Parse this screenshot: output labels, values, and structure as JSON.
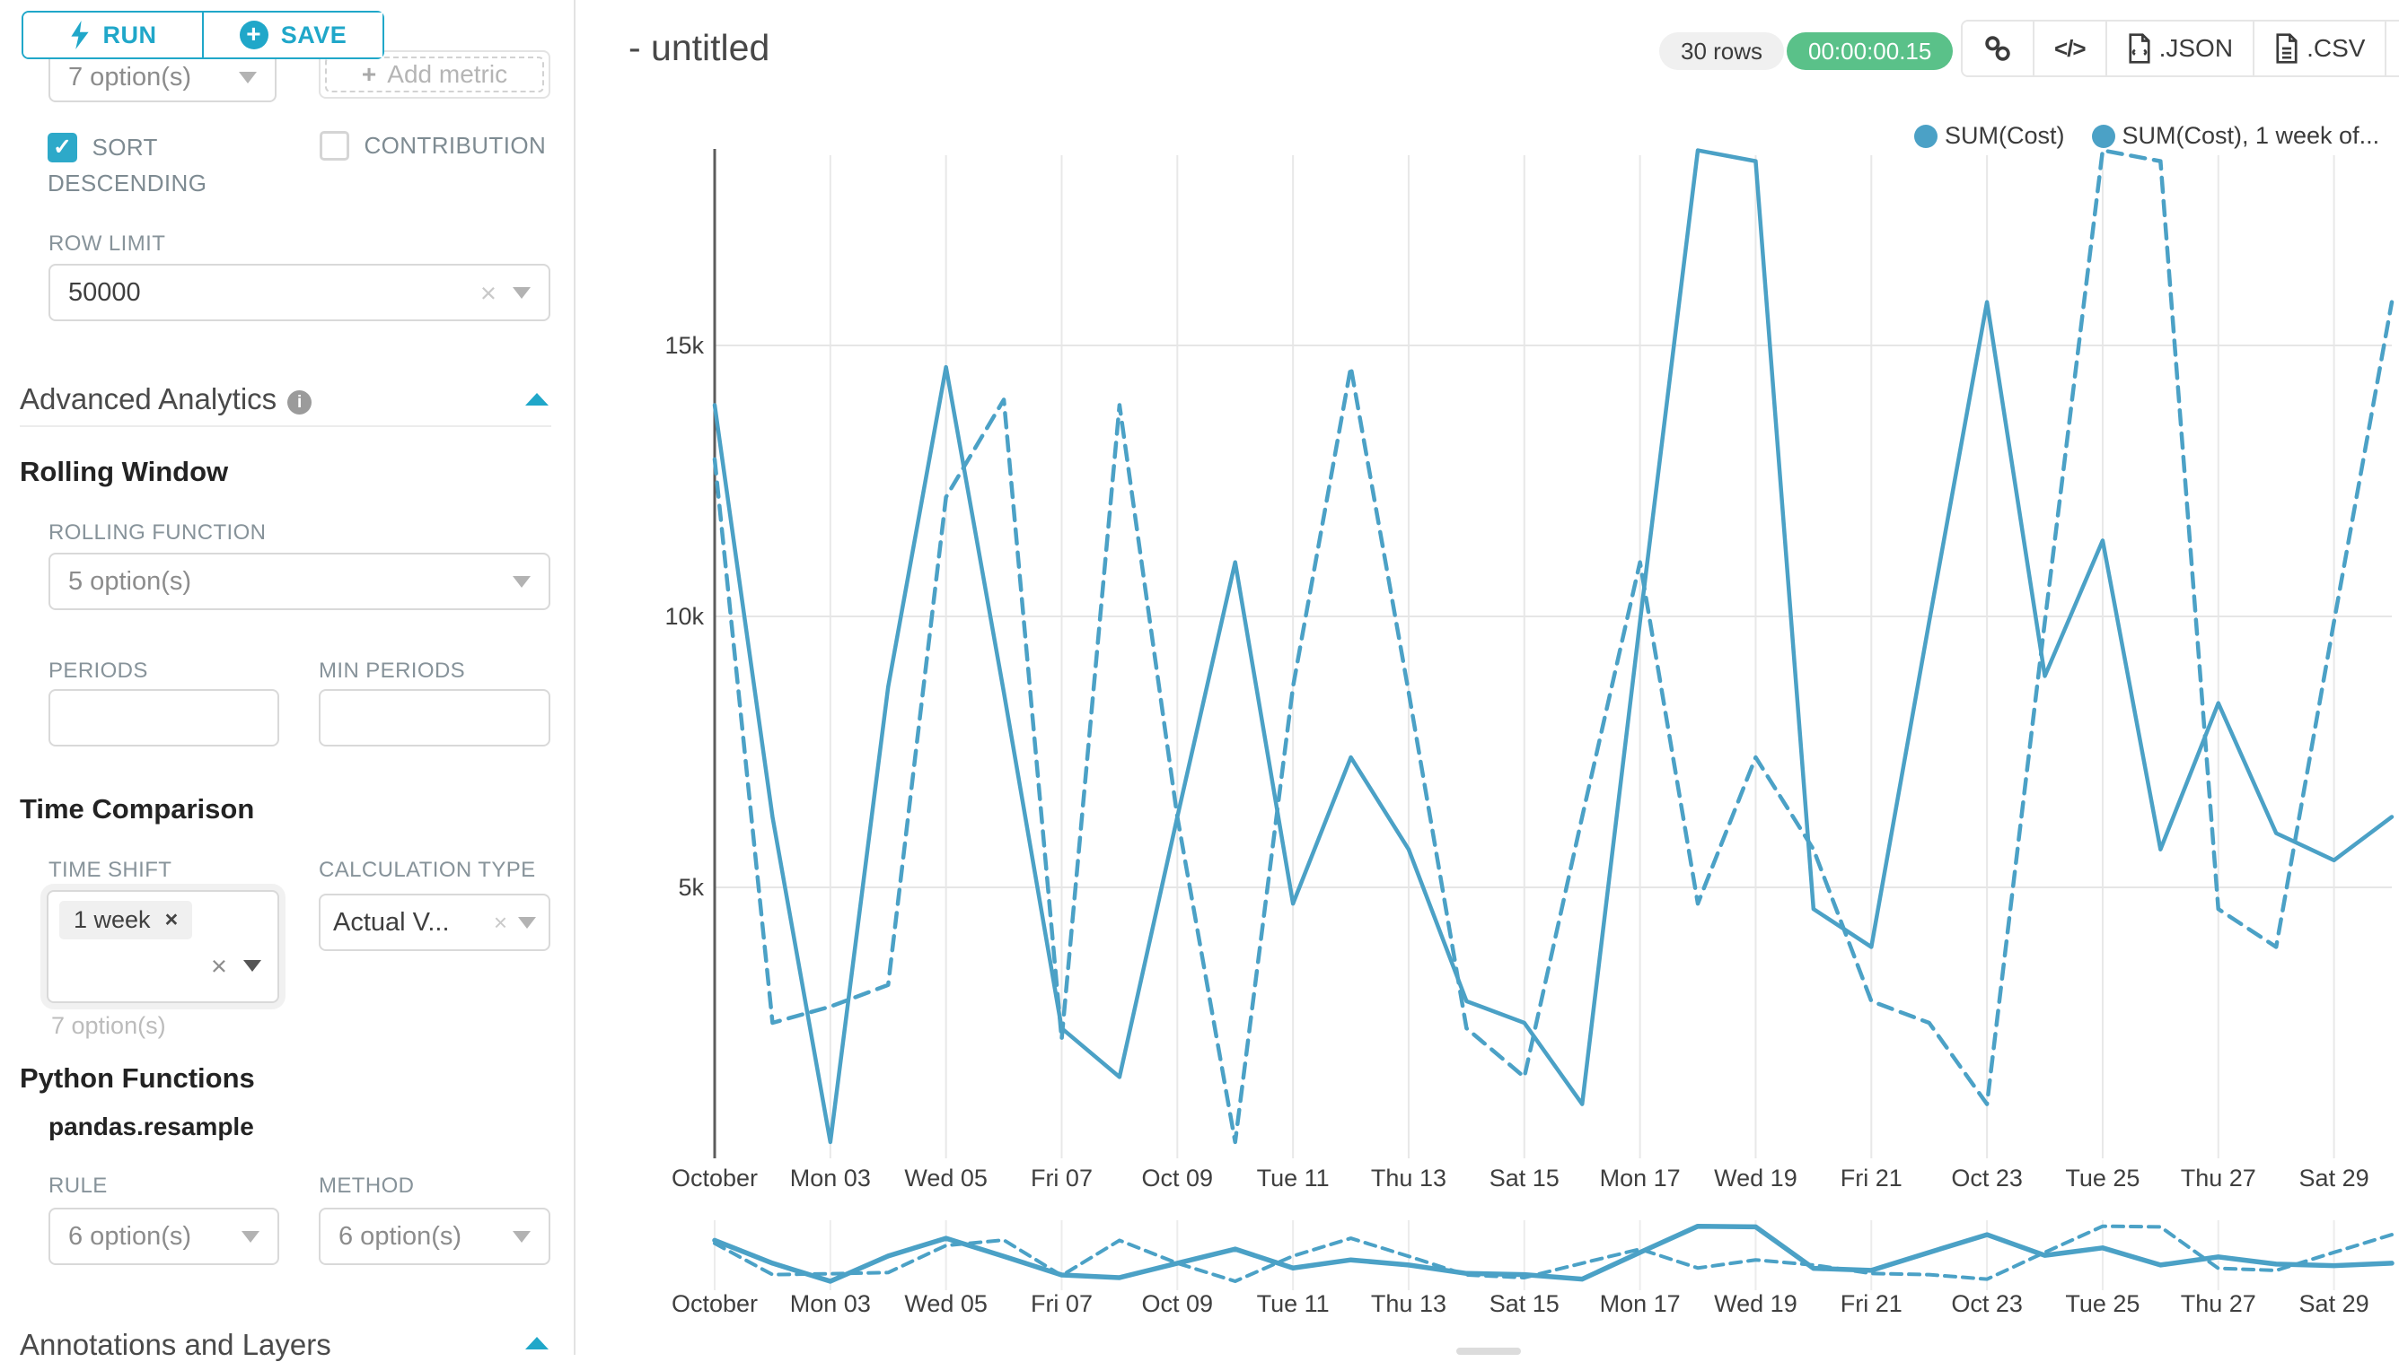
{
  "icons": {
    "clear": "×",
    "check": "✓",
    "plus": "+",
    "info": "i",
    "code": "</>",
    "menu": "≡"
  },
  "sidebar": {
    "run": "RUN",
    "save": "SAVE",
    "series_dropdown": "7 option(s)",
    "add_metric": "Add metric",
    "sort_descending": "SORT DESCENDING",
    "contribution": "CONTRIBUTION",
    "row_limit_label": "ROW LIMIT",
    "row_limit_value": "50000",
    "advanced_analytics": "Advanced Analytics",
    "rolling_window": {
      "title": "Rolling Window",
      "rolling_function_label": "ROLLING FUNCTION",
      "rolling_function_value": "5 option(s)",
      "periods_label": "PERIODS",
      "min_periods_label": "MIN PERIODS"
    },
    "time_comparison": {
      "title": "Time Comparison",
      "time_shift_label": "TIME SHIFT",
      "time_shift_tag": "1 week",
      "time_shift_helper": "7 option(s)",
      "calculation_type_label": "CALCULATION TYPE",
      "calculation_type_value": "Actual V..."
    },
    "python_functions": {
      "title": "Python Functions",
      "subtitle": "pandas.resample",
      "rule_label": "RULE",
      "rule_value": "6 option(s)",
      "method_label": "METHOD",
      "method_value": "6 option(s)"
    },
    "annotations_title": "Annotations and Layers"
  },
  "header": {
    "title": "- untitled",
    "rows_badge": "30 rows",
    "timer_badge": "00:00:00.15",
    "json_label": ".JSON",
    "csv_label": ".CSV"
  },
  "colors": {
    "accent": "#20A7C9",
    "line": "#4BA1C6",
    "timer_green": "#5AC189",
    "grid": "#e8e8e8",
    "axis": "#5c5c5c"
  },
  "chart_data": {
    "type": "line",
    "title": "",
    "xlabel": "",
    "ylabel": "",
    "grid": true,
    "legend_position": "top-right",
    "x": [
      "Oct 01",
      "Oct 02",
      "Oct 03",
      "Oct 04",
      "Oct 05",
      "Oct 06",
      "Oct 07",
      "Oct 08",
      "Oct 09",
      "Oct 10",
      "Oct 11",
      "Oct 12",
      "Oct 13",
      "Oct 14",
      "Oct 15",
      "Oct 16",
      "Oct 17",
      "Oct 18",
      "Oct 19",
      "Oct 20",
      "Oct 21",
      "Oct 22",
      "Oct 23",
      "Oct 24",
      "Oct 25",
      "Oct 26",
      "Oct 27",
      "Oct 28",
      "Oct 29",
      "Oct 30"
    ],
    "x_tick_labels": [
      "October",
      "Mon 03",
      "Wed 05",
      "Fri 07",
      "Oct 09",
      "Tue 11",
      "Thu 13",
      "Sat 15",
      "Mon 17",
      "Wed 19",
      "Fri 21",
      "Oct 23",
      "Tue 25",
      "Thu 27",
      "Sat 29"
    ],
    "x_tick_indices": [
      0,
      2,
      4,
      6,
      8,
      10,
      12,
      14,
      16,
      18,
      20,
      22,
      24,
      26,
      28
    ],
    "ylim": [
      0,
      18700
    ],
    "y_ticks": [
      {
        "value": 5000,
        "label": "5k"
      },
      {
        "value": 10000,
        "label": "10k"
      },
      {
        "value": 15000,
        "label": "15k"
      }
    ],
    "series": [
      {
        "name": "SUM(Cost)",
        "style": "solid",
        "color": "#4BA1C6",
        "values": [
          13900,
          6300,
          300,
          8700,
          14600,
          8600,
          2400,
          1500,
          6300,
          11000,
          4700,
          7400,
          5700,
          2900,
          2500,
          1000,
          9900,
          18600,
          18400,
          4600,
          3900,
          9900,
          15800,
          8900,
          11400,
          5700,
          8400,
          6000,
          5500,
          6300
        ]
      },
      {
        "name": "SUM(Cost), 1 week of...",
        "style": "dashed",
        "color": "#4BA1C6",
        "values": [
          12900,
          2500,
          2800,
          3200,
          12200,
          14000,
          2200,
          13900,
          6300,
          300,
          8700,
          14600,
          8600,
          2400,
          1500,
          6300,
          11000,
          4700,
          7400,
          5700,
          2900,
          2500,
          1000,
          9900,
          18600,
          18400,
          4600,
          3900,
          9900,
          15800
        ]
      }
    ],
    "mini_chart": true
  }
}
